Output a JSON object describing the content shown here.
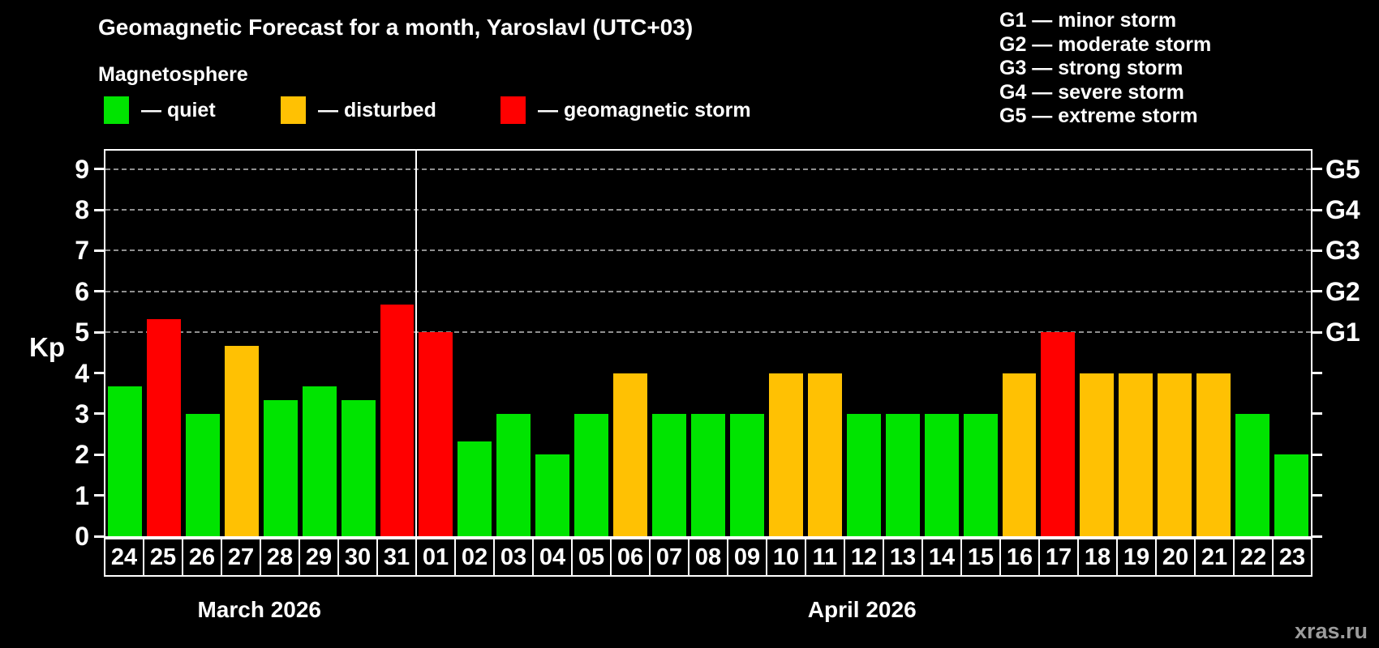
{
  "header": {
    "title": "Geomagnetic Forecast for a month, Yaroslavl (UTC+03)",
    "subtitle": "Magnetosphere"
  },
  "legend": {
    "items": [
      {
        "status": "quiet",
        "label": "— quiet",
        "color": "#00e400"
      },
      {
        "status": "disturbed",
        "label": "— disturbed",
        "color": "#ffc103"
      },
      {
        "status": "storm",
        "label": "— geomagnetic storm",
        "color": "#ff0000"
      }
    ]
  },
  "storm_scale_legend": {
    "items": [
      "G1 — minor storm",
      "G2 — moderate storm",
      "G3 — strong storm",
      "G4 — severe storm",
      "G5 — extreme storm"
    ]
  },
  "chart_data": {
    "type": "bar",
    "ylabel": "Kp",
    "ylim": [
      0,
      9.45
    ],
    "yticks": [
      0,
      1,
      2,
      3,
      4,
      5,
      6,
      7,
      8,
      9
    ],
    "grid_levels": [
      5,
      6,
      7,
      8,
      9
    ],
    "grid_on": true,
    "right_axis_labels": [
      {
        "level": 5,
        "label": "G1"
      },
      {
        "level": 6,
        "label": "G2"
      },
      {
        "level": 7,
        "label": "G3"
      },
      {
        "level": 8,
        "label": "G4"
      },
      {
        "level": 9,
        "label": "G5"
      }
    ],
    "categories": [
      "24",
      "25",
      "26",
      "27",
      "28",
      "29",
      "30",
      "31",
      "01",
      "02",
      "03",
      "04",
      "05",
      "06",
      "07",
      "08",
      "09",
      "10",
      "11",
      "12",
      "13",
      "14",
      "15",
      "16",
      "17",
      "18",
      "19",
      "20",
      "21",
      "22",
      "23"
    ],
    "values": [
      3.67,
      5.33,
      3,
      4.67,
      3.33,
      3.67,
      3.33,
      5.67,
      5,
      2.33,
      3,
      2,
      3,
      4,
      3,
      3,
      3,
      4,
      4,
      3,
      3,
      3,
      3,
      4,
      5,
      4,
      4,
      4,
      4,
      3,
      2
    ],
    "statuses": [
      "quiet",
      "storm",
      "quiet",
      "disturbed",
      "quiet",
      "quiet",
      "quiet",
      "storm",
      "storm",
      "quiet",
      "quiet",
      "quiet",
      "quiet",
      "disturbed",
      "quiet",
      "quiet",
      "quiet",
      "disturbed",
      "disturbed",
      "quiet",
      "quiet",
      "quiet",
      "quiet",
      "disturbed",
      "storm",
      "disturbed",
      "disturbed",
      "disturbed",
      "disturbed",
      "quiet",
      "quiet"
    ],
    "colors": {
      "quiet": "#00e400",
      "disturbed": "#ffc103",
      "storm": "#ff0000"
    },
    "months": [
      {
        "label": "March 2026",
        "span": [
          0,
          7
        ]
      },
      {
        "label": "April 2026",
        "span": [
          8,
          30
        ]
      }
    ]
  },
  "watermark": "xras.ru"
}
